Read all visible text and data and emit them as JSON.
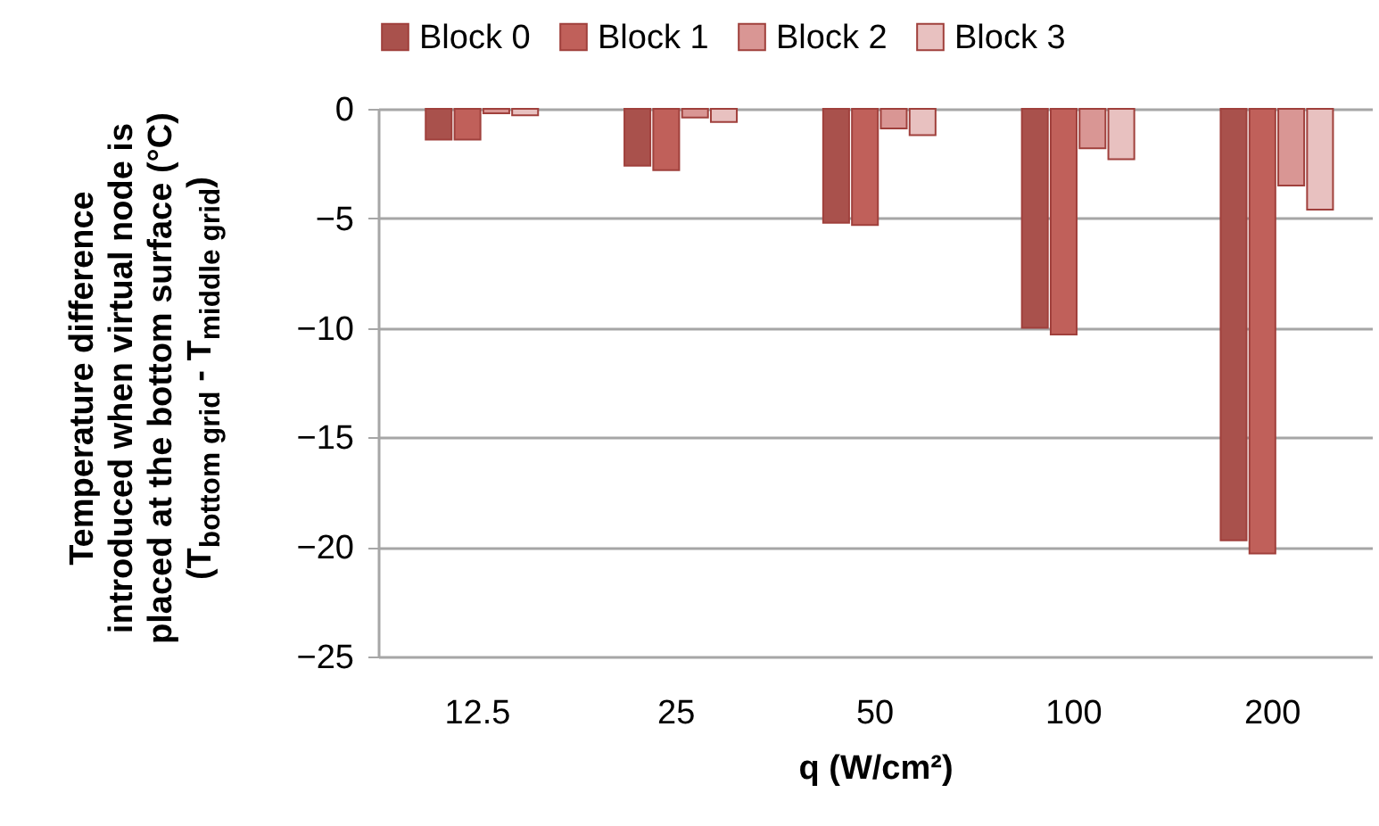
{
  "chart_data": {
    "type": "bar",
    "categories": [
      "12.5",
      "25",
      "50",
      "100",
      "200"
    ],
    "series": [
      {
        "name": "Block 0",
        "color": "#a9514c",
        "values": [
          -1.4,
          -2.6,
          -5.2,
          -10.0,
          -19.7
        ]
      },
      {
        "name": "Block 1",
        "color": "#c0605a",
        "values": [
          -1.4,
          -2.8,
          -5.3,
          -10.3,
          -20.3
        ]
      },
      {
        "name": "Block 2",
        "color": "#d99694",
        "values": [
          -0.2,
          -0.4,
          -0.9,
          -1.8,
          -3.5
        ]
      },
      {
        "name": "Block 3",
        "color": "#e8c1c0",
        "values": [
          -0.3,
          -0.6,
          -1.2,
          -2.3,
          -4.6
        ]
      }
    ],
    "xlabel": "q (W/cm²)",
    "ylabel": "Temperature difference\nintroduced when virtual node is\nplaced at the bottom surface (°C)\n(T$_{bottom grid}$ - T$_{middle grid}$)",
    "ylim": [
      -25,
      0
    ],
    "yticks": [
      -25,
      -20,
      -15,
      -10,
      -5,
      0
    ],
    "grid": "y",
    "legend": "top"
  }
}
